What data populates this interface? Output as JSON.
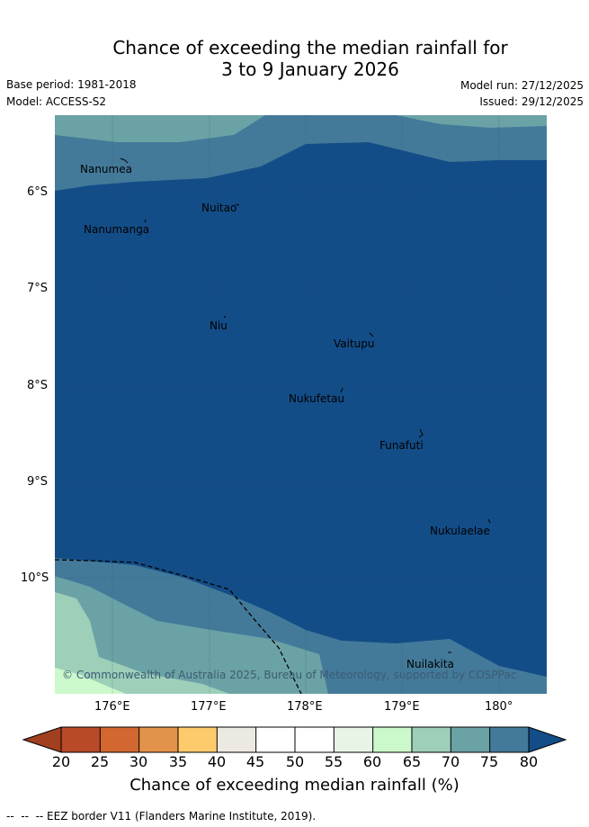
{
  "title": {
    "line1": "Chance of exceeding the median rainfall for",
    "line2": "3 to 9 January 2026"
  },
  "meta": {
    "base_period": "Base period: 1981-2018",
    "model": "Model: ACCESS-S2",
    "model_run": "Model run: 27/12/2025",
    "issued": "Issued: 29/12/2025"
  },
  "axes": {
    "y_ticks": [
      "6°S",
      "7°S",
      "8°S",
      "9°S",
      "10°S"
    ],
    "x_ticks": [
      "176°E",
      "177°E",
      "178°E",
      "179°E",
      "180°"
    ]
  },
  "places": [
    {
      "name": "Nanumea"
    },
    {
      "name": "Nuitao"
    },
    {
      "name": "Nanumanga"
    },
    {
      "name": "Niu"
    },
    {
      "name": "Vaitupu"
    },
    {
      "name": "Nukufetau"
    },
    {
      "name": "Funafuti"
    },
    {
      "name": "Nukulaelae"
    },
    {
      "name": "Nuilakita"
    }
  ],
  "copyright": "© Commonwealth of Australia 2025, Bureau of Meteorology, supported by COSPPac",
  "colorbar": {
    "label": "Chance of exceeding median rainfall (%)",
    "ticks": [
      "20",
      "25",
      "30",
      "35",
      "40",
      "45",
      "50",
      "55",
      "60",
      "65",
      "70",
      "75",
      "80"
    ],
    "colors": [
      "#a0401f",
      "#b84a27",
      "#d2672f",
      "#e3924a",
      "#fdcb6b",
      "#ece8e2",
      "#ffffff",
      "#ffffff",
      "#e8f5e6",
      "#ccf9cb",
      "#9dcfb9",
      "#6ba2a5",
      "#437a9a",
      "#134d87"
    ]
  },
  "legend": {
    "eez": "--  --  -- EEZ border V11 (Flanders Marine Institute, 2019)."
  }
}
